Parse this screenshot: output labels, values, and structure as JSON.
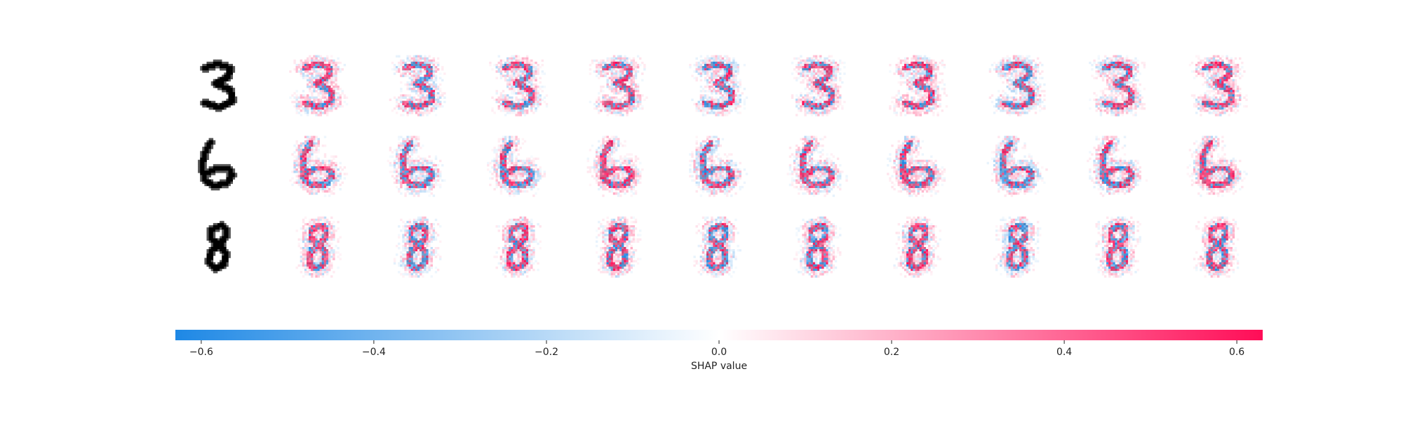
{
  "chart_data": {
    "type": "heatmap",
    "title": "",
    "rows": [
      {
        "digit": "3"
      },
      {
        "digit": "6"
      },
      {
        "digit": "8"
      }
    ],
    "explanation_columns": 10,
    "colorbar": {
      "label": "SHAP value",
      "range": [
        -0.63,
        0.63
      ],
      "ticks": [
        "−0.6",
        "−0.4",
        "−0.2",
        "0.0",
        "0.2",
        "0.4",
        "0.6"
      ],
      "tick_values": [
        -0.6,
        -0.4,
        -0.2,
        0.0,
        0.2,
        0.4,
        0.6
      ],
      "colors": {
        "negative": "#1e88e5",
        "zero": "#ffffff",
        "positive": "#ff0d57"
      }
    },
    "grid": false
  }
}
